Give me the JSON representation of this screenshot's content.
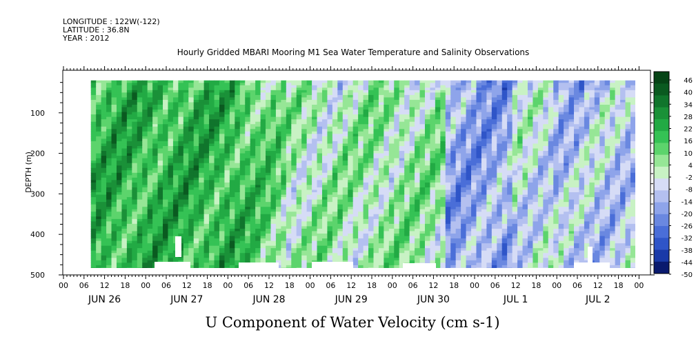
{
  "header": {
    "longitude": "LONGITUDE : 122W(-122)",
    "latitude": "LATITUDE : 36.8N",
    "year": "YEAR : 2012"
  },
  "chart_data": {
    "type": "heatmap",
    "title": "Hourly Gridded MBARI Mooring M1 Sea Water Temperature and Salinity Observations",
    "xlabel": "U Component of Water Velocity (cm s-1)",
    "ylabel": "DEPTH (m)",
    "x_hour_ticks": [
      "00",
      "06",
      "12",
      "18",
      "00",
      "06",
      "12",
      "18",
      "00",
      "06",
      "12",
      "18",
      "00",
      "06",
      "12",
      "18",
      "00",
      "06",
      "12",
      "18",
      "00",
      "06",
      "12",
      "18",
      "00",
      "06",
      "12",
      "18",
      "00"
    ],
    "x_day_labels": [
      "JUN 26",
      "JUN 27",
      "JUN 28",
      "JUN 29",
      "JUN 30",
      "JUL  1",
      "JUL  2"
    ],
    "y_ticks": [
      100,
      200,
      300,
      400,
      500
    ],
    "ylim": [
      500,
      0
    ],
    "colorbar": {
      "labels": [
        "46",
        "40",
        "34",
        "28",
        "22",
        "16",
        "10",
        "4",
        "-2",
        "-8",
        "-14",
        "-20",
        "-26",
        "-32",
        "-38",
        "-44",
        "-50"
      ],
      "range": [
        -50,
        52
      ],
      "colors": [
        "#0a1a6e",
        "#1a3aa8",
        "#2f55c8",
        "#4a6ed8",
        "#6a88e0",
        "#8ea4ea",
        "#b4c0f0",
        "#d6dcf6",
        "#c8f2c4",
        "#96e696",
        "#5cd46c",
        "#35c255",
        "#22aa44",
        "#1a9138",
        "#10752c",
        "#0a5a20",
        "#064416"
      ]
    }
  }
}
